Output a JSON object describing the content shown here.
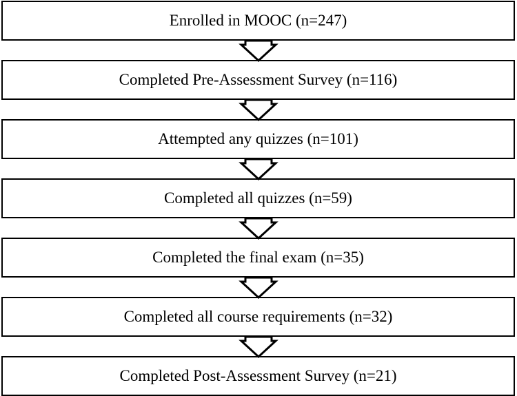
{
  "steps": [
    {
      "label": "Enrolled in MOOC (n=247)"
    },
    {
      "label": "Completed Pre-Assessment Survey (n=116)"
    },
    {
      "label": "Attempted any quizzes (n=101)"
    },
    {
      "label": "Completed all quizzes (n=59)"
    },
    {
      "label": "Completed the final exam (n=35)"
    },
    {
      "label": "Completed all course requirements (n=32)"
    },
    {
      "label": "Completed Post-Assessment Survey (n=21)"
    }
  ]
}
